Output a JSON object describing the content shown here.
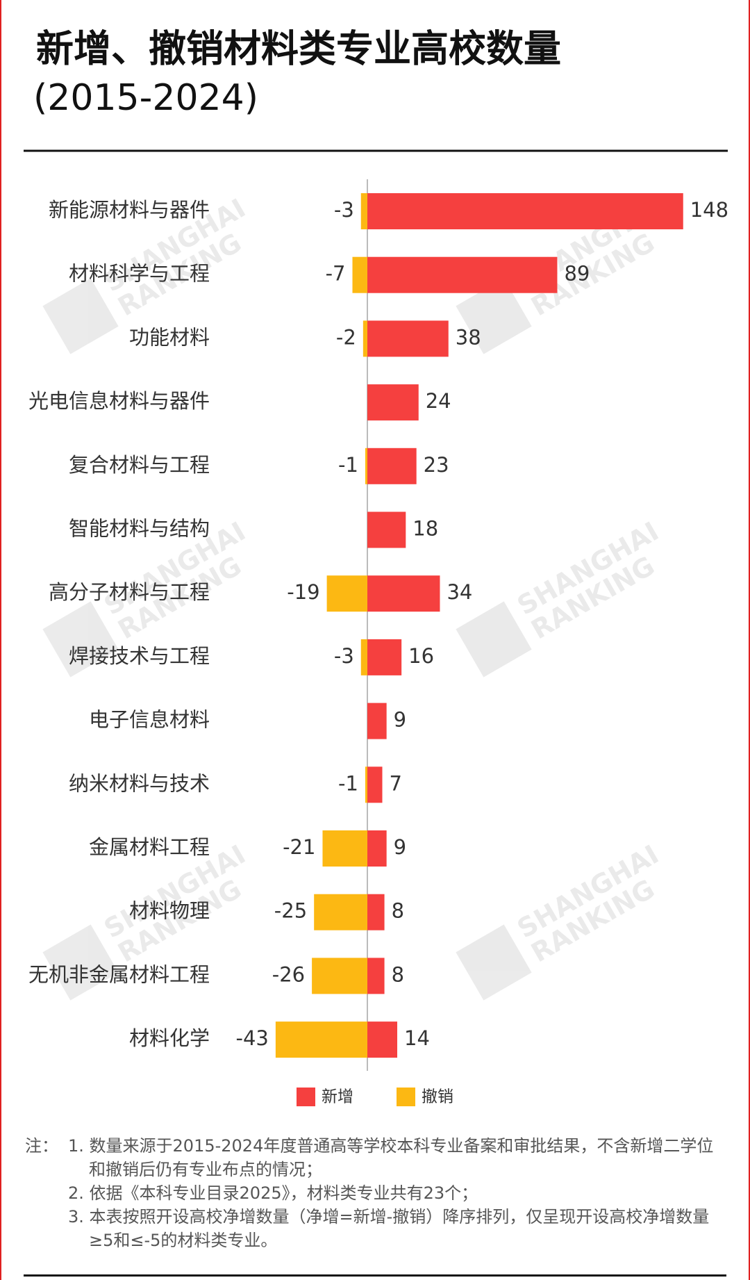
{
  "chart_data": {
    "type": "diverging-bar",
    "title": "新增、撤销材料类专业高校数量",
    "subtitle": "(2015-2024)",
    "categories": [
      "新能源材料与器件",
      "材料科学与工程",
      "功能材料",
      "光电信息材料与器件",
      "复合材料与工程",
      "智能材料与结构",
      "高分子材料与工程",
      "焊接技术与工程",
      "电子信息材料",
      "纳米材料与技术",
      "金属材料工程",
      "材料物理",
      "无机非金属材料工程",
      "材料化学"
    ],
    "series": [
      {
        "name": "新增",
        "color": "#f5403f",
        "values": [
          148,
          89,
          38,
          24,
          23,
          18,
          34,
          16,
          9,
          7,
          9,
          8,
          8,
          14
        ]
      },
      {
        "name": "撤销",
        "color": "#fcb813",
        "values": [
          -3,
          -7,
          -2,
          null,
          -1,
          null,
          -19,
          -3,
          null,
          -1,
          -21,
          -25,
          -26,
          -43
        ]
      }
    ],
    "watermark": [
      "SHANGHAI",
      "RANKING"
    ]
  },
  "notes": {
    "label": "注：",
    "items": [
      "1. 数量来源于2015-2024年度普通高等学校本科专业备案和审批结果，不含新增二学位和撤销后仍有专业布点的情况；",
      "2. 依据《本科专业目录2025》，材料类专业共有23个；",
      "3. 本表按照开设高校净增数量（净增=新增-撤销）降序排列，仅呈现开设高校净增数量≥5和≤-5的材料类专业。"
    ]
  }
}
